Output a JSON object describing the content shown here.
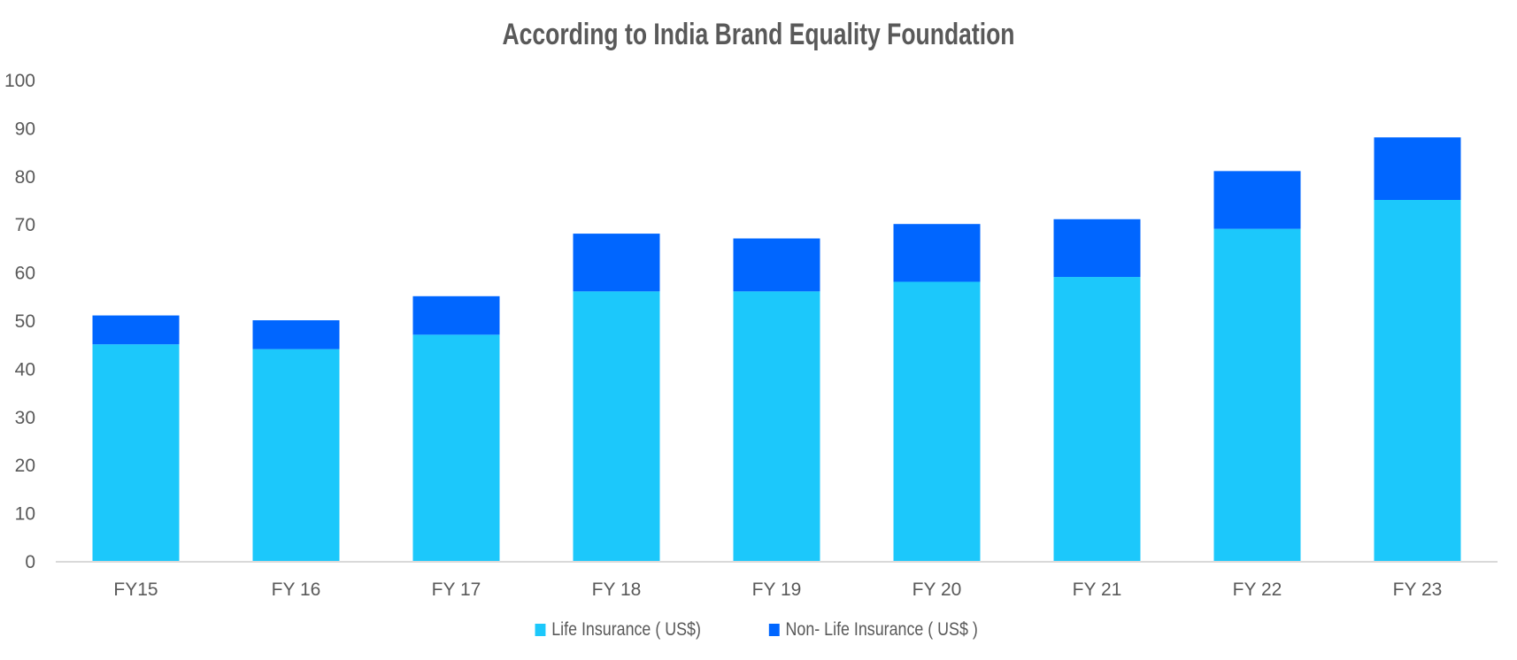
{
  "chart_data": {
    "type": "bar",
    "stacked": true,
    "title": "According to India Brand Equality Foundation",
    "xlabel": "",
    "ylabel": "",
    "ylim": [
      0,
      100
    ],
    "yticks": [
      "0",
      "10",
      "20",
      "30",
      "40",
      "50",
      "60",
      "70",
      "80",
      "90",
      "100"
    ],
    "categories": [
      "FY15",
      "FY 16",
      "FY 17",
      "FY 18",
      "FY 19",
      "FY 20",
      "FY 21",
      "FY 22",
      "FY 23"
    ],
    "series": [
      {
        "name": "Life Insurance ( US$)",
        "color": "#1CC8FB",
        "values": [
          45,
          44,
          47,
          56,
          56,
          58,
          59,
          69,
          75
        ]
      },
      {
        "name": "Non- Life Insurance ( US$ )",
        "color": "#0066FF",
        "values": [
          6,
          6,
          8,
          12,
          11,
          12,
          12,
          12,
          13
        ]
      }
    ],
    "grid": false,
    "legend": "bottom"
  }
}
